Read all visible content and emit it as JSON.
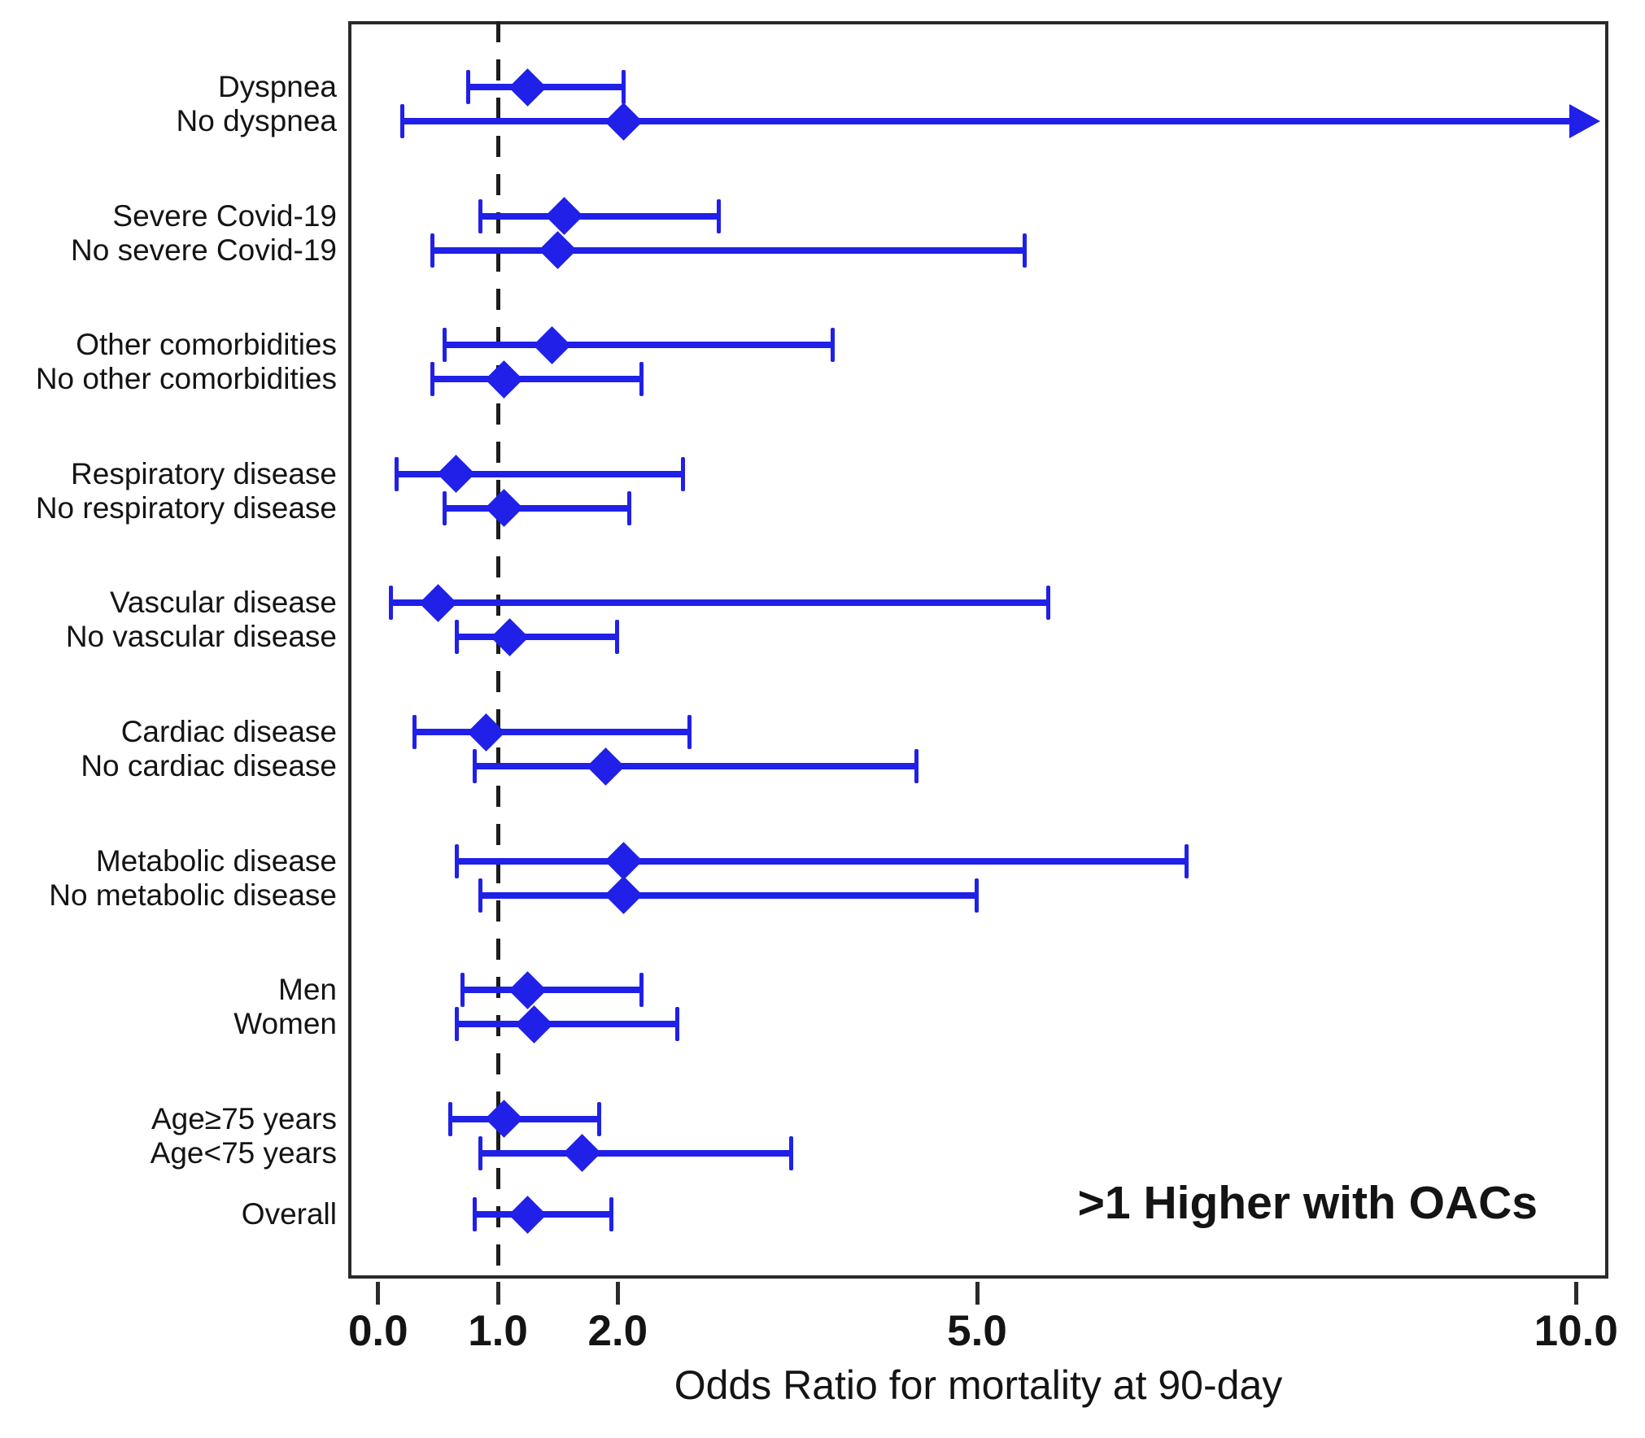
{
  "figure": {
    "background": "#ffffff",
    "marker_color": "#2020e8",
    "axis_color": "#2a2a2a",
    "text_color": "#141414"
  },
  "chart_data": {
    "type": "scatter",
    "subtype": "forest-plot",
    "title": "",
    "xlabel": "Odds Ratio for mortality at 90-day",
    "ylabel": "",
    "xlim": [
      -0.25,
      10.27
    ],
    "x_ticks": [
      0.0,
      1.0,
      2.0,
      5.0,
      10.0
    ],
    "x_tick_labels": [
      "0.0",
      "1.0",
      "2.0",
      "5.0",
      "10.0"
    ],
    "reference_line_x": 1.0,
    "reference_line_style": "dashed",
    "annotation": ">1 Higher with OACs",
    "marker": "diamond",
    "grid": false,
    "legend": "none",
    "groups": [
      {
        "rows": [
          {
            "label": "Dyspnea",
            "or": 1.25,
            "ci_low": 0.75,
            "ci_high": 2.05,
            "arrow": false
          },
          {
            "label": "No dyspnea",
            "or": 2.05,
            "ci_low": 0.2,
            "ci_high": 10.2,
            "arrow": true
          }
        ]
      },
      {
        "rows": [
          {
            "label": "Severe Covid-19",
            "or": 1.55,
            "ci_low": 0.85,
            "ci_high": 2.85,
            "arrow": false
          },
          {
            "label": "No severe Covid-19",
            "or": 1.5,
            "ci_low": 0.45,
            "ci_high": 5.4,
            "arrow": false
          }
        ]
      },
      {
        "rows": [
          {
            "label": "Other comorbidities",
            "or": 1.45,
            "ci_low": 0.55,
            "ci_high": 3.8,
            "arrow": false
          },
          {
            "label": "No other comorbidities",
            "or": 1.05,
            "ci_low": 0.45,
            "ci_high": 2.2,
            "arrow": false
          }
        ]
      },
      {
        "rows": [
          {
            "label": "Respiratory disease",
            "or": 0.65,
            "ci_low": 0.15,
            "ci_high": 2.55,
            "arrow": false
          },
          {
            "label": "No respiratory disease",
            "or": 1.05,
            "ci_low": 0.55,
            "ci_high": 2.1,
            "arrow": false
          }
        ]
      },
      {
        "rows": [
          {
            "label": "Vascular disease",
            "or": 0.5,
            "ci_low": 0.1,
            "ci_high": 5.6,
            "arrow": false
          },
          {
            "label": "No vascular disease",
            "or": 1.1,
            "ci_low": 0.65,
            "ci_high": 2.0,
            "arrow": false
          }
        ]
      },
      {
        "rows": [
          {
            "label": "Cardiac disease",
            "or": 0.9,
            "ci_low": 0.3,
            "ci_high": 2.6,
            "arrow": false
          },
          {
            "label": "No cardiac disease",
            "or": 1.9,
            "ci_low": 0.8,
            "ci_high": 4.5,
            "arrow": false
          }
        ]
      },
      {
        "rows": [
          {
            "label": "Metabolic disease",
            "or": 2.05,
            "ci_low": 0.65,
            "ci_high": 6.75,
            "arrow": false
          },
          {
            "label": "No metabolic disease",
            "or": 2.05,
            "ci_low": 0.85,
            "ci_high": 5.0,
            "arrow": false
          }
        ]
      },
      {
        "rows": [
          {
            "label": "Men",
            "or": 1.25,
            "ci_low": 0.7,
            "ci_high": 2.2,
            "arrow": false
          },
          {
            "label": "Women",
            "or": 1.3,
            "ci_low": 0.65,
            "ci_high": 2.5,
            "arrow": false
          }
        ]
      },
      {
        "rows": [
          {
            "label": "Age≥75 years",
            "or": 1.05,
            "ci_low": 0.6,
            "ci_high": 1.85,
            "arrow": false
          },
          {
            "label": "Age<75 years",
            "or": 1.7,
            "ci_low": 0.85,
            "ci_high": 3.45,
            "arrow": false
          }
        ]
      },
      {
        "rows": [
          {
            "label": "Overall",
            "or": 1.25,
            "ci_low": 0.8,
            "ci_high": 1.95,
            "arrow": false
          }
        ]
      }
    ]
  }
}
